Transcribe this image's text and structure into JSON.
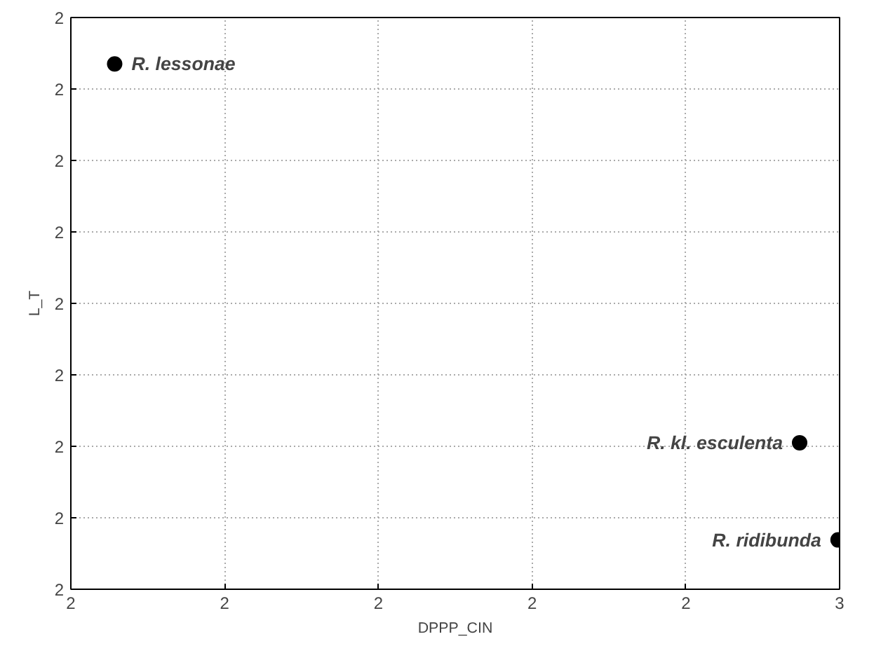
{
  "chart_data": {
    "type": "scatter",
    "xlabel": "DPPP_CIN",
    "ylabel": "L_T",
    "x": [
      2.4057,
      2.4948,
      2.4998
    ],
    "values": [
      2.335,
      1.805,
      1.669
    ],
    "color": "#000000",
    "marker": "circle",
    "grid": true,
    "xlim": [
      2.4,
      2.5
    ],
    "ylim": [
      1.6,
      2.4
    ],
    "xticks": [
      {
        "value": 2.4,
        "label": "2"
      },
      {
        "value": 2.42,
        "label": "2"
      },
      {
        "value": 2.44,
        "label": "2"
      },
      {
        "value": 2.46,
        "label": "2"
      },
      {
        "value": 2.48,
        "label": "2"
      },
      {
        "value": 2.5,
        "label": "3"
      }
    ],
    "yticks": [
      {
        "value": 1.6,
        "label": "2"
      },
      {
        "value": 1.7,
        "label": "2"
      },
      {
        "value": 1.8,
        "label": "2"
      },
      {
        "value": 1.9,
        "label": "2"
      },
      {
        "value": 2.0,
        "label": "2"
      },
      {
        "value": 2.1,
        "label": "2"
      },
      {
        "value": 2.2,
        "label": "2"
      },
      {
        "value": 2.3,
        "label": "2"
      },
      {
        "value": 2.4,
        "label": "2"
      }
    ],
    "annotations": [
      {
        "text": "R. lessonae",
        "x": 2.4057,
        "y": 2.335
      },
      {
        "text": "R. kl. esculenta",
        "x": 2.4948,
        "y": 1.805
      },
      {
        "text": "R. ridibunda",
        "x": 2.4998,
        "y": 1.669
      }
    ]
  }
}
